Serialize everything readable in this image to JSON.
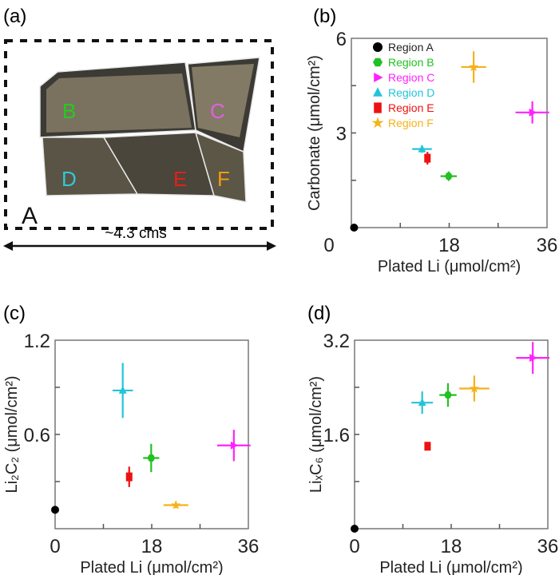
{
  "panel_labels": [
    "(a)",
    "(b)",
    "(c)",
    "(d)"
  ],
  "photo": {
    "region_labels": [
      {
        "text": "A",
        "color": "#111111"
      },
      {
        "text": "B",
        "color": "#22cc22"
      },
      {
        "text": "C",
        "color": "#e060e0"
      },
      {
        "text": "D",
        "color": "#30c8d8"
      },
      {
        "text": "E",
        "color": "#e81c1c"
      },
      {
        "text": "F",
        "color": "#f59a10"
      }
    ],
    "scale_label": "~4.3 cms"
  },
  "legend": [
    {
      "name": "Region A",
      "color": "#000000",
      "marker": "circle"
    },
    {
      "name": "Region B",
      "color": "#22c022",
      "marker": "hexagon"
    },
    {
      "name": "Region C",
      "color": "#ff22ff",
      "marker": "triangle-right"
    },
    {
      "name": "Region D",
      "color": "#22c4d8",
      "marker": "triangle-up"
    },
    {
      "name": "Region E",
      "color": "#ee1111",
      "marker": "square"
    },
    {
      "name": "Region F",
      "color": "#f5b21a",
      "marker": "star"
    }
  ],
  "chart_data": [
    {
      "type": "scatter",
      "panel": "(b)",
      "xlabel": "Plated Li (μmol/cm²)",
      "ylabel": "Carbonate (μmol/cm²)",
      "xlim": [
        0,
        36
      ],
      "ylim": [
        0,
        6
      ],
      "xticks": [
        "0",
        "18",
        "36"
      ],
      "yticks": [
        "3",
        "6"
      ],
      "legend_position": "top-left",
      "points": [
        {
          "region": "Region A",
          "x": 0.5,
          "y": 0.0,
          "xerr": 0,
          "yerr": 0
        },
        {
          "region": "Region B",
          "x": 17.9,
          "y": 1.63,
          "xerr": 1.5,
          "yerr": 0.15
        },
        {
          "region": "Region C",
          "x": 33.3,
          "y": 3.65,
          "xerr": 3.1,
          "yerr": 0.35
        },
        {
          "region": "Region D",
          "x": 13.0,
          "y": 2.49,
          "xerr": 1.8,
          "yerr": 0.12
        },
        {
          "region": "Region E",
          "x": 14.0,
          "y": 2.2,
          "xerr": 0,
          "yerr": 0.2
        },
        {
          "region": "Region F",
          "x": 22.5,
          "y": 5.09,
          "xerr": 2.3,
          "yerr": 0.5
        }
      ]
    },
    {
      "type": "scatter",
      "panel": "(c)",
      "xlabel": "Plated Li (μmol/cm²)",
      "ylabel": "Li₂C₂ (μmol/cm²)",
      "xlim": [
        0,
        36
      ],
      "ylim": [
        0,
        1.2
      ],
      "xticks": [
        "0",
        "18",
        "36"
      ],
      "yticks": [
        "0.6",
        "1.2"
      ],
      "points": [
        {
          "region": "Region A",
          "x": 0.0,
          "y": 0.12,
          "xerr": 0,
          "yerr": 0
        },
        {
          "region": "Region B",
          "x": 17.9,
          "y": 0.45,
          "xerr": 1.5,
          "yerr": 0.09
        },
        {
          "region": "Region C",
          "x": 33.3,
          "y": 0.53,
          "xerr": 3.1,
          "yerr": 0.1
        },
        {
          "region": "Region D",
          "x": 12.6,
          "y": 0.88,
          "xerr": 1.9,
          "yerr": 0.175
        },
        {
          "region": "Region E",
          "x": 13.8,
          "y": 0.33,
          "xerr": 0,
          "yerr": 0.065
        },
        {
          "region": "Region F",
          "x": 22.5,
          "y": 0.15,
          "xerr": 2.3,
          "yerr": 0.02
        }
      ]
    },
    {
      "type": "scatter",
      "panel": "(d)",
      "xlabel": "Plated Li (μmol/cm²)",
      "ylabel": "LiₓC₆ (μmol/cm²)",
      "xlim": [
        0,
        36
      ],
      "ylim": [
        0,
        3.2
      ],
      "xticks": [
        "0",
        "18",
        "36"
      ],
      "yticks": [
        "1.6",
        "3.2"
      ],
      "points": [
        {
          "region": "Region A",
          "x": 0.0,
          "y": 0.0,
          "xerr": 0,
          "yerr": 0
        },
        {
          "region": "Region B",
          "x": 17.4,
          "y": 2.27,
          "xerr": 1.6,
          "yerr": 0.2
        },
        {
          "region": "Region C",
          "x": 33.2,
          "y": 2.9,
          "xerr": 3.1,
          "yerr": 0.27
        },
        {
          "region": "Region D",
          "x": 12.6,
          "y": 2.14,
          "xerr": 2.0,
          "yerr": 0.19
        },
        {
          "region": "Region E",
          "x": 13.6,
          "y": 1.4,
          "xerr": 0,
          "yerr": 0.06
        },
        {
          "region": "Region F",
          "x": 22.3,
          "y": 2.38,
          "xerr": 2.8,
          "yerr": 0.22
        }
      ]
    }
  ]
}
